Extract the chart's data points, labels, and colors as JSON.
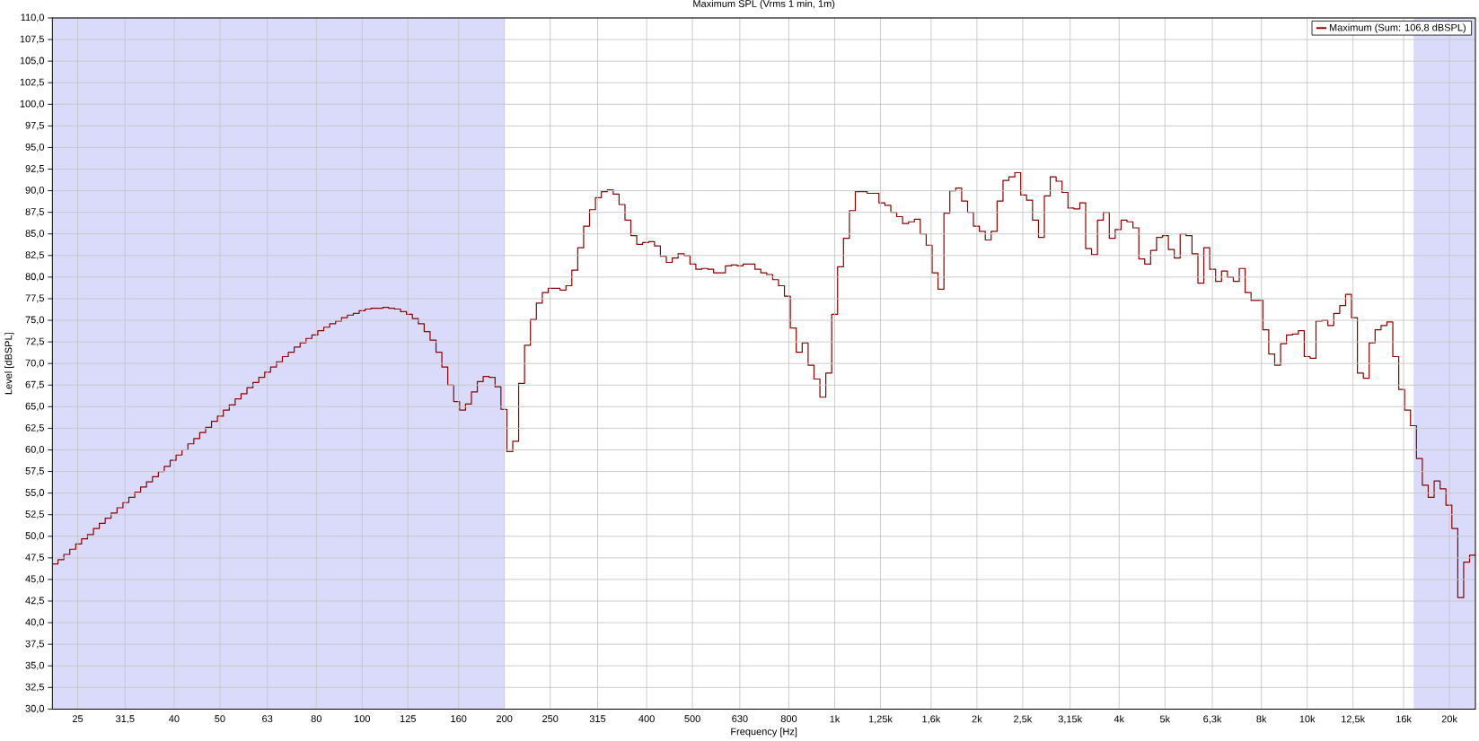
{
  "chart_data": {
    "type": "step",
    "title": "Maximum SPL (Vrms 1 min, 1m)",
    "xlabel": "Frequency [Hz]",
    "ylabel": "Level [dBSPL]",
    "log": "x",
    "grid": true,
    "legend": "top right",
    "xlim": [
      22.1,
      22700
    ],
    "ylim": [
      30,
      110
    ],
    "xticks": [
      25,
      {
        "value": 31.5,
        "label": "31,5"
      },
      40,
      50,
      63,
      80,
      100,
      125,
      160,
      200,
      250,
      315,
      400,
      500,
      630,
      800,
      {
        "value": 1000,
        "label": "1k"
      },
      {
        "value": 1250,
        "label": "1,25k"
      },
      {
        "value": 1600,
        "label": "1,6k"
      },
      {
        "value": 2000,
        "label": "2k"
      },
      {
        "value": 2500,
        "label": "2,5k"
      },
      {
        "value": 3150,
        "label": "3,15k"
      },
      {
        "value": 4000,
        "label": "4k"
      },
      {
        "value": 5000,
        "label": "5k"
      },
      {
        "value": 6300,
        "label": "6,3k"
      },
      {
        "value": 8000,
        "label": "8k"
      },
      {
        "value": 10000,
        "label": "10k"
      },
      {
        "value": 12500,
        "label": "12,5k"
      },
      {
        "value": 16000,
        "label": "16k"
      },
      {
        "value": 20000,
        "label": "20k"
      }
    ],
    "yticks": [
      {
        "value": 30,
        "label": "30,0"
      },
      {
        "value": 32.5,
        "label": "32,5"
      },
      {
        "value": 35,
        "label": "35,0"
      },
      {
        "value": 37.5,
        "label": "37,5"
      },
      {
        "value": 40,
        "label": "40,0"
      },
      {
        "value": 42.5,
        "label": "42,5"
      },
      {
        "value": 45,
        "label": "45,0"
      },
      {
        "value": 47.5,
        "label": "47,5"
      },
      {
        "value": 50,
        "label": "50,0"
      },
      {
        "value": 52.5,
        "label": "52,5"
      },
      {
        "value": 55,
        "label": "55,0"
      },
      {
        "value": 57.5,
        "label": "57,5"
      },
      {
        "value": 60,
        "label": "60,0"
      },
      {
        "value": 62.5,
        "label": "62,5"
      },
      {
        "value": 65,
        "label": "65,0"
      },
      {
        "value": 67.5,
        "label": "67,5"
      },
      {
        "value": 70,
        "label": "70,0"
      },
      {
        "value": 72.5,
        "label": "72,5"
      },
      {
        "value": 75,
        "label": "75,0"
      },
      {
        "value": 77.5,
        "label": "77,5"
      },
      {
        "value": 80,
        "label": "80,0"
      },
      {
        "value": 82.5,
        "label": "82,5"
      },
      {
        "value": 85,
        "label": "85,0"
      },
      {
        "value": 87.5,
        "label": "87,5"
      },
      {
        "value": 90,
        "label": "90,0"
      },
      {
        "value": 92.5,
        "label": "92,5"
      },
      {
        "value": 95,
        "label": "95,0"
      },
      {
        "value": 97.5,
        "label": "97,5"
      },
      {
        "value": 100,
        "label": "100,0"
      },
      {
        "value": 102.5,
        "label": "102,5"
      },
      {
        "value": 105,
        "label": "105,0"
      },
      {
        "value": 107.5,
        "label": "107,5"
      },
      {
        "value": 110,
        "label": "110,0"
      }
    ],
    "bands": [
      {
        "axis": "x",
        "from": 22.1,
        "to": 200,
        "color": "#dadafa"
      },
      {
        "axis": "x",
        "from": 16800,
        "to": 22700,
        "color": "#dadafa"
      }
    ],
    "x": [
      22.39,
      23.04,
      23.71,
      24.41,
      25.12,
      25.85,
      26.61,
      27.39,
      28.18,
      29.01,
      29.85,
      30.73,
      31.62,
      32.55,
      33.5,
      34.47,
      35.48,
      36.52,
      37.58,
      38.68,
      39.81,
      40.97,
      42.17,
      43.4,
      44.67,
      45.97,
      47.31,
      48.7,
      50.12,
      51.58,
      53.09,
      54.64,
      56.23,
      57.88,
      59.57,
      61.31,
      63.1,
      64.94,
      66.84,
      68.79,
      70.79,
      72.87,
      74.99,
      77.18,
      79.43,
      81.75,
      84.14,
      86.6,
      89.13,
      91.73,
      94.41,
      97.16,
      100.0,
      102.9,
      105.9,
      109.0,
      112.2,
      115.5,
      118.9,
      122.3,
      125.9,
      129.6,
      133.4,
      137.2,
      141.3,
      145.4,
      149.6,
      154.0,
      158.5,
      163.1,
      167.9,
      172.8,
      177.8,
      183.0,
      188.4,
      193.9,
      199.5,
      205.4,
      211.3,
      217.5,
      223.9,
      230.4,
      237.1,
      244.1,
      251.2,
      258.5,
      266.1,
      273.9,
      281.8,
      290.1,
      298.5,
      307.3,
      316.2,
      325.5,
      335.0,
      344.7,
      354.8,
      365.2,
      375.8,
      386.8,
      398.1,
      409.7,
      421.7,
      434.0,
      446.7,
      459.7,
      473.1,
      487.0,
      501.2,
      515.8,
      530.9,
      546.4,
      562.3,
      578.8,
      595.7,
      613.1,
      631.0,
      649.4,
      668.4,
      687.9,
      707.9,
      728.7,
      749.9,
      771.8,
      794.3,
      817.5,
      841.4,
      866.0,
      891.3,
      917.3,
      944.1,
      971.6,
      1000,
      1029,
      1059,
      1090,
      1122,
      1155,
      1189,
      1223,
      1259,
      1296,
      1334,
      1372,
      1413,
      1454,
      1496,
      1540,
      1585,
      1631,
      1679,
      1728,
      1778,
      1830,
      1884,
      1939,
      1995,
      2054,
      2113,
      2175,
      2239,
      2304,
      2371,
      2441,
      2512,
      2585,
      2661,
      2739,
      2818,
      2901,
      2985,
      3073,
      3162,
      3255,
      3350,
      3447,
      3548,
      3652,
      3758,
      3868,
      3981,
      4097,
      4217,
      4340,
      4467,
      4597,
      4731,
      4870,
      5012,
      5158,
      5309,
      5464,
      5623,
      5788,
      5957,
      6131,
      6310,
      6494,
      6684,
      6879,
      7079,
      7287,
      7499,
      7718,
      7943,
      8175,
      8414,
      8660,
      8913,
      9173,
      9441,
      9716,
      10000,
      10290,
      10590,
      10900,
      11220,
      11550,
      11890,
      12230,
      12590,
      12960,
      13340,
      13720,
      14130,
      14540,
      14960,
      15400,
      15850,
      16310,
      16790,
      17280,
      17780,
      18300,
      18840,
      19390,
      19950,
      20540,
      21130,
      21750,
      22390
    ],
    "series": [
      {
        "name": "Maximum (Sum: 106,8 dBSPL)",
        "color": "#8b0000",
        "values": [
          46.8,
          47.3,
          47.9,
          48.5,
          49.1,
          49.7,
          50.2,
          50.9,
          51.5,
          52.1,
          52.7,
          53.3,
          53.9,
          54.5,
          55.1,
          55.7,
          56.3,
          56.9,
          57.5,
          58.1,
          58.8,
          59.4,
          60.0,
          60.7,
          61.3,
          62.0,
          62.6,
          63.3,
          63.9,
          64.6,
          65.2,
          65.9,
          66.5,
          67.2,
          67.8,
          68.4,
          69.0,
          69.6,
          70.2,
          70.8,
          71.3,
          71.9,
          72.4,
          72.9,
          73.3,
          73.8,
          74.2,
          74.6,
          74.9,
          75.3,
          75.6,
          75.8,
          76.1,
          76.3,
          76.4,
          76.4,
          76.5,
          76.4,
          76.3,
          76.0,
          75.7,
          75.2,
          74.6,
          73.7,
          72.7,
          71.3,
          69.6,
          67.5,
          65.6,
          64.6,
          65.3,
          66.7,
          67.9,
          68.5,
          68.4,
          67.3,
          64.7,
          59.8,
          61.0,
          67.7,
          72.1,
          75.1,
          77.0,
          78.2,
          78.7,
          78.7,
          78.5,
          79.0,
          80.8,
          83.4,
          85.9,
          87.8,
          89.2,
          89.9,
          90.1,
          89.6,
          88.4,
          86.6,
          84.8,
          83.8,
          84.0,
          84.1,
          83.6,
          82.4,
          81.7,
          82.2,
          82.7,
          82.5,
          81.5,
          80.9,
          81.0,
          80.9,
          80.5,
          80.5,
          81.3,
          81.4,
          81.3,
          81.5,
          81.5,
          80.9,
          80.5,
          80.3,
          79.7,
          79.0,
          77.8,
          74.1,
          71.3,
          72.4,
          69.8,
          68.2,
          66.1,
          68.9,
          75.7,
          81.2,
          84.5,
          87.7,
          89.9,
          89.9,
          89.7,
          89.7,
          88.6,
          88.3,
          87.5,
          87.0,
          86.2,
          86.4,
          86.7,
          85.0,
          83.7,
          80.5,
          78.6,
          87.4,
          90.0,
          90.3,
          88.8,
          87.5,
          85.9,
          85.3,
          84.3,
          85.3,
          88.8,
          91.2,
          91.6,
          92.1,
          89.5,
          88.9,
          86.6,
          84.6,
          89.4,
          91.6,
          91.1,
          89.8,
          88.0,
          87.9,
          88.6,
          83.3,
          82.6,
          86.6,
          87.5,
          84.5,
          85.5,
          86.6,
          86.4,
          85.7,
          82.1,
          81.5,
          83.1,
          84.6,
          84.8,
          83.2,
          82.2,
          85.0,
          84.8,
          82.7,
          79.3,
          83.4,
          80.9,
          79.5,
          80.7,
          80.0,
          79.5,
          81.0,
          78.2,
          77.3,
          77.3,
          73.9,
          71.1,
          69.8,
          72.3,
          73.3,
          73.4,
          73.8,
          70.8,
          70.6,
          74.9,
          75.0,
          74.4,
          75.8,
          76.7,
          78.0,
          75.3,
          68.9,
          68.3,
          72.4,
          73.9,
          74.4,
          74.8,
          70.8,
          67.0,
          64.6,
          62.8,
          59.0,
          55.9,
          54.5,
          56.4,
          55.5,
          53.6,
          50.9,
          42.9,
          47.0,
          47.8
        ]
      }
    ]
  }
}
